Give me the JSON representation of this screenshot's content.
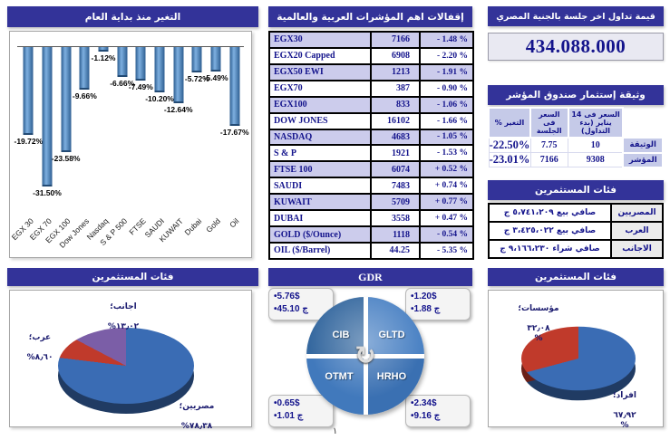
{
  "page_number": "١",
  "colors": {
    "header_bg": "#333399",
    "navy_text": "#14148C",
    "row_alt": "#CCCCEC",
    "bar_blue": "#4F81BD",
    "pie_blue": "#3A6CB4",
    "pie_red": "#C03A2B",
    "pie_purple": "#7B5EA7"
  },
  "ytd": {
    "title": "التغير منذ بداية العام"
  },
  "indices": {
    "title": "إقفالات اهم المؤشرات العربية والعالمية",
    "rows": [
      {
        "name": "EGX30",
        "value": "7166",
        "change": "- 1.48 %"
      },
      {
        "name": "EGX20 Capped",
        "value": "6908",
        "change": "- 2.20 %"
      },
      {
        "name": "EGX50 EWI",
        "value": "1213",
        "change": "- 1.91 %"
      },
      {
        "name": "EGX70",
        "value": "387",
        "change": "- 0.90 %"
      },
      {
        "name": "EGX100",
        "value": "833",
        "change": "- 1.06 %"
      },
      {
        "name": "DOW JONES",
        "value": "16102",
        "change": "- 1.66 %"
      },
      {
        "name": "NASDAQ",
        "value": "4683",
        "change": "- 1.05 %"
      },
      {
        "name": "S & P",
        "value": "1921",
        "change": "- 1.53 %"
      },
      {
        "name": "FTSE 100",
        "value": "6074",
        "change": "+ 0.52 %"
      },
      {
        "name": "SAUDI",
        "value": "7483",
        "change": "+ 0.74 %"
      },
      {
        "name": "KUWAIT",
        "value": "5709",
        "change": "+ 0.77 %"
      },
      {
        "name": "DUBAI",
        "value": "3558",
        "change": "+ 0.47 %"
      },
      {
        "name": "GOLD ($/Ounce)",
        "value": "1118",
        "change": "- 0.54 %"
      },
      {
        "name": "OIL ($/Barrel)",
        "value": "44.25",
        "change": "- 5.35 %"
      }
    ]
  },
  "trading": {
    "title": "قيمة تداول اخر جلسة بالجنية المصري",
    "value": "434.088.000"
  },
  "fund": {
    "title": "وثيقة إستثمار صندوق المؤشر",
    "headers": {
      "start": "السعر فى 14 يناير (بدء التداول)",
      "session": "السعر فى الجلسة",
      "change": "التغير %"
    },
    "rows": [
      {
        "label": "الوثيقة",
        "start": "10",
        "session": "7.75",
        "change": "-22.50%"
      },
      {
        "label": "المؤشر",
        "start": "9308",
        "session": "7166",
        "change": "-23.01%"
      }
    ]
  },
  "investors": {
    "title": "فئات المستثمرين",
    "rows": [
      {
        "label": "المصريين",
        "value": "صافي بيع ٥،٧٤١،٢٠٩ ج"
      },
      {
        "label": "العرب",
        "value": "صافي بيع ٣،٤٢٥،٠٢٢ ج"
      },
      {
        "label": "الاجانب",
        "value": "صافي شراء ٩،١٦٦،٢٣٠ ج"
      }
    ]
  },
  "gdr": {
    "title": "GDR",
    "quadrants": [
      {
        "name": "CIB",
        "lines": [
          "•5.76$",
          "•45.10 ج"
        ]
      },
      {
        "name": "GLTD",
        "lines": [
          "•1.20$",
          "•1.88 ج"
        ]
      },
      {
        "name": "OTMT",
        "lines": [
          "•0.65$",
          "•1.01 ج"
        ]
      },
      {
        "name": "HRHO",
        "lines": [
          "•2.34$",
          "•9.16 ج"
        ]
      }
    ]
  },
  "chart_data": [
    {
      "type": "bar",
      "title": "التغير منذ بداية العام",
      "categories": [
        "EGX 30",
        "EGX 70",
        "EGX 100",
        "Dow Jones",
        "Nasdaq",
        "S & P 500",
        "FTSE",
        "SAUDI",
        "KUWAIT",
        "Dubai",
        "Gold",
        "Oil"
      ],
      "values": [
        -19.72,
        -31.5,
        -23.58,
        -9.66,
        -1.12,
        -6.66,
        -7.49,
        -10.2,
        -12.64,
        -5.72,
        -5.49,
        -17.67
      ],
      "value_labels": [
        "-19.72%",
        "-31.50%",
        "-23.58%",
        "-9.66%",
        "-1.12%",
        "-6.66%",
        "-7.49%",
        "-10.20%",
        "-12.64%",
        "-5.72%",
        "-5.49%",
        "-17.67%"
      ],
      "xlabel": "",
      "ylabel": "",
      "ylim": [
        -35,
        0
      ],
      "grid": false,
      "bar_color": "#4F81BD"
    },
    {
      "type": "pie",
      "title": "فئات المستثمرين",
      "slices": [
        {
          "label": "مصريين",
          "name_label": "مصريين؛",
          "value": 78.38,
          "display": "٧٨٫٣٨%",
          "color": "#3A6CB4"
        },
        {
          "label": "عرب",
          "name_label": "عرب؛",
          "value": 8.6,
          "display": "٨٫٦٠%",
          "color": "#C03A2B"
        },
        {
          "label": "اجانب",
          "name_label": "اجانب؛",
          "value": 13.02,
          "display": "١٣٫٠٢%",
          "color": "#7B5EA7"
        }
      ]
    },
    {
      "type": "pie",
      "title": "فئات المستثمرين",
      "slices": [
        {
          "label": "افراد",
          "name_label": "افراد؛",
          "value": 67.92,
          "display": "٦٧٫٩٢\n%",
          "color": "#3A6CB4"
        },
        {
          "label": "مؤسسات",
          "name_label": "مؤسسات؛",
          "value": 32.08,
          "display": "٣٢٫٠٨\n%",
          "color": "#C03A2B"
        }
      ]
    }
  ]
}
